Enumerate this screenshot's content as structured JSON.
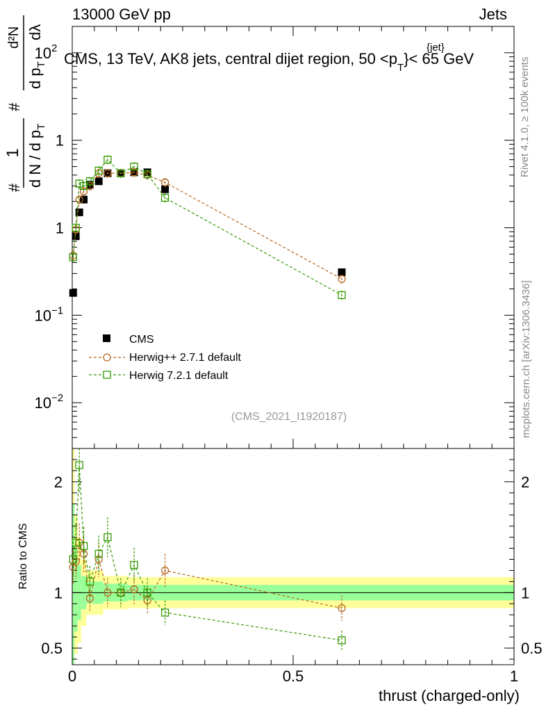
{
  "header": {
    "energy": "13000 GeV pp",
    "category": "Jets",
    "title": "CMS, 13 TeV, AK8 jets, central dijet region, 50 <p",
    "title_sup": "{jet}",
    "title_sub": "T",
    "title_end": "}< 65 GeV",
    "analysis_tag": "(CMS_2021_I1920187)"
  },
  "side_text": {
    "rivet": "Rivet 4.1.0, ≥ 100k events",
    "mcplots": "mcplots.cern.ch [arXiv:1306.3436]"
  },
  "axes": {
    "ylabel_main": "1/N dN/dp_T dλ",
    "ylabel_num": "1",
    "ylabel_den": "d N / d p",
    "ylabel_den_sub": "T",
    "ylabel_d2N": "d²N",
    "ylabel_dpT": "d p",
    "ylabel_dlambda": "dλ",
    "ylabel_ratio": "Ratio to CMS",
    "xlabel": "thrust (charged-only)",
    "main_tick_labels": [
      "10",
      "1",
      "10",
      "10"
    ],
    "main_tick_exponents": [
      "2",
      "",
      "−1",
      "−2"
    ],
    "ratio_tick_labels": [
      "2",
      "1",
      "0.5"
    ],
    "x_tick_labels": [
      "0",
      "0.5",
      "1"
    ]
  },
  "chart_data": {
    "type": "scatter",
    "xlim": [
      0,
      1
    ],
    "ylim_main": [
      0.003,
      200
    ],
    "yscale_main": "log",
    "ylim_ratio": [
      0.35,
      2.3
    ],
    "legend_placement": "middle-left",
    "series": [
      {
        "name": "CMS",
        "color": "#000000",
        "marker": "filled-square",
        "x": [
          0.002,
          0.008,
          0.016,
          0.026,
          0.04,
          0.06,
          0.08,
          0.11,
          0.14,
          0.17,
          0.21,
          0.61
        ],
        "y": [
          0.18,
          0.8,
          1.5,
          2.1,
          3.1,
          3.4,
          4.2,
          4.2,
          4.3,
          4.3,
          2.75,
          0.31
        ]
      },
      {
        "name": "Herwig++ 2.7.1 default",
        "color": "#b5651d",
        "marker": "open-circle",
        "x": [
          0.002,
          0.008,
          0.016,
          0.026,
          0.04,
          0.06,
          0.08,
          0.11,
          0.14,
          0.17,
          0.21,
          0.61
        ],
        "y": [
          0.48,
          0.95,
          2.1,
          2.6,
          3.0,
          4.2,
          4.2,
          4.2,
          4.3,
          4.0,
          3.3,
          0.26
        ],
        "ratio": [
          1.23,
          1.28,
          1.45,
          1.35,
          0.95,
          1.3,
          1.0,
          1.0,
          1.03,
          0.93,
          1.2,
          0.86
        ]
      },
      {
        "name": "Herwig 7.2.1 default",
        "color": "#339900",
        "marker": "open-square",
        "x": [
          0.002,
          0.008,
          0.016,
          0.026,
          0.04,
          0.06,
          0.08,
          0.11,
          0.14,
          0.17,
          0.21,
          0.61
        ],
        "y": [
          0.46,
          1.0,
          3.2,
          3.0,
          3.4,
          4.5,
          6.0,
          4.2,
          5.0,
          4.1,
          2.2,
          0.17
        ],
        "ratio": [
          1.3,
          1.45,
          2.15,
          1.42,
          1.1,
          1.35,
          1.5,
          1.0,
          1.25,
          1.0,
          0.82,
          0.57
        ]
      }
    ],
    "ratio_bands": {
      "x_edges": [
        0,
        0.005,
        0.012,
        0.02,
        0.032,
        0.05,
        0.07,
        0.095,
        0.125,
        0.155,
        0.19,
        0.25,
        1.0
      ],
      "inner_low": [
        0.3,
        0.65,
        0.75,
        0.85,
        0.9,
        0.9,
        0.92,
        0.92,
        0.93,
        0.93,
        0.93,
        0.93
      ],
      "inner_high": [
        1.8,
        1.4,
        1.25,
        1.15,
        1.1,
        1.1,
        1.08,
        1.08,
        1.07,
        1.07,
        1.07,
        1.07
      ],
      "outer_low": [
        0.2,
        0.45,
        0.55,
        0.7,
        0.8,
        0.8,
        0.85,
        0.85,
        0.86,
        0.86,
        0.86,
        0.86
      ],
      "outer_high": [
        2.3,
        1.7,
        1.5,
        1.3,
        1.2,
        1.2,
        1.15,
        1.15,
        1.14,
        1.14,
        1.14,
        1.14
      ]
    },
    "colors": {
      "inner_band": "#99ff99",
      "outer_band": "#ffff99"
    }
  }
}
